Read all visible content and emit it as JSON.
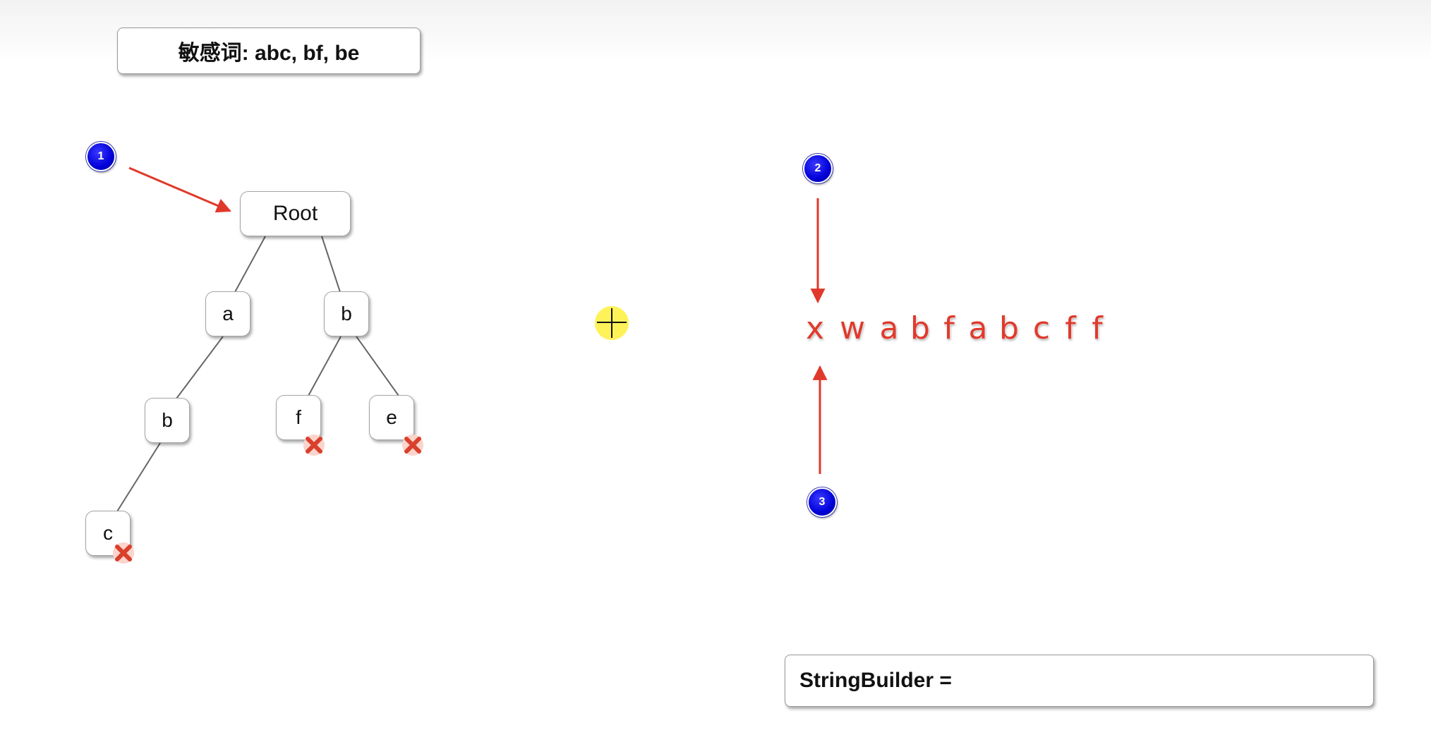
{
  "header": {
    "sensitive_words": "敏感词: abc, bf, be"
  },
  "tree": {
    "root": "Root",
    "a": "a",
    "b_right": "b",
    "b_left": "b",
    "f": "f",
    "e": "e",
    "c": "c"
  },
  "steps": {
    "one": "1",
    "two": "2",
    "three": "3"
  },
  "input_string": [
    "x",
    "w",
    "a",
    "b",
    "f",
    "a",
    "b",
    "c",
    "f",
    "f"
  ],
  "string_builder": {
    "label": "StringBuilder ="
  },
  "colors": {
    "arrow": "#e0392b",
    "badge": "#0000d8",
    "text_red": "#e03a2c",
    "mark": "#d9402b"
  }
}
